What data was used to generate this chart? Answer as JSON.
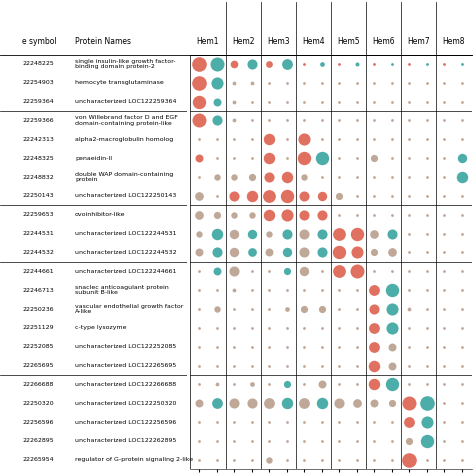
{
  "gene_symbols": [
    "22248225",
    "22254903",
    "22259364",
    "22259366",
    "22242313",
    "22248325",
    "22248832",
    "22250143",
    "22259653",
    "22244531",
    "22244532",
    "22244661",
    "22246713",
    "22250236",
    "22251129",
    "22252085",
    "22265695",
    "22266688",
    "22250320",
    "22256596",
    "22262895",
    "22265954"
  ],
  "protein_names": [
    "single insulin-like growth factor-\nbinding domain protein-2",
    "hemocyte transglutaminase",
    "uncharacterized LOC122259364",
    "von Willebrand factor D and EGF\ndomain-containing protein-like",
    "alpha2-macroglobulin homolog",
    "penaeidin-II",
    "double WAP domain-containing\nprotein",
    "uncharacterized LOC122250143",
    "ovoinhibitor-like",
    "uncharacterized LOC122244531",
    "uncharacterized LOC122244532",
    "uncharacterized LOC122244661",
    "snaclec anticoagulant protein\nsubunit B-like",
    "vascular endothelial growth factor\nA-like",
    "c-type lysozyme",
    "uncharacterized LOC122252085",
    "uncharacterized LOC122265695",
    "uncharacterized LOC122266688",
    "uncharacterized LOC122250320",
    "uncharacterized LOC122256596",
    "uncharacterized LOC122262895",
    "regulator of G-protein signaling 2-like"
  ],
  "hem_groups": [
    "Hem1",
    "Hem2",
    "Hem3",
    "Hem4",
    "Hem5",
    "Hem6",
    "Hem7",
    "Hem8"
  ],
  "color_red": "#E07060",
  "color_teal": "#4DADA8",
  "color_beige": "#C0A898",
  "row_separators_after": [
    3,
    8,
    11,
    17
  ],
  "dot_sizes": [
    [
      0.9,
      0.85,
      0.38,
      0.55,
      0.32,
      0.6,
      0.1,
      0.2,
      0.1,
      0.16,
      0.1,
      0.1,
      0.1,
      0.1,
      0.1,
      0.1
    ],
    [
      0.9,
      0.7,
      0.15,
      0.15,
      0.1,
      0.1,
      0.1,
      0.1,
      0.1,
      0.1,
      0.1,
      0.1,
      0.1,
      0.1,
      0.1,
      0.1
    ],
    [
      0.8,
      0.4,
      0.15,
      0.1,
      0.1,
      0.1,
      0.1,
      0.1,
      0.1,
      0.1,
      0.1,
      0.1,
      0.1,
      0.1,
      0.1,
      0.1
    ],
    [
      0.85,
      0.55,
      0.15,
      0.1,
      0.1,
      0.1,
      0.1,
      0.1,
      0.1,
      0.1,
      0.1,
      0.1,
      0.1,
      0.1,
      0.1,
      0.1
    ],
    [
      0.1,
      0.1,
      0.1,
      0.1,
      0.65,
      0.1,
      0.7,
      0.1,
      0.1,
      0.1,
      0.1,
      0.1,
      0.1,
      0.1,
      0.1,
      0.1
    ],
    [
      0.4,
      0.1,
      0.1,
      0.1,
      0.65,
      0.1,
      0.8,
      0.8,
      0.1,
      0.1,
      0.35,
      0.1,
      0.1,
      0.1,
      0.1,
      0.5
    ],
    [
      0.1,
      0.3,
      0.3,
      0.35,
      0.55,
      0.65,
      0.3,
      0.1,
      0.1,
      0.1,
      0.1,
      0.1,
      0.1,
      0.1,
      0.1,
      0.65
    ],
    [
      0.45,
      0.1,
      0.55,
      0.65,
      0.75,
      0.8,
      0.55,
      0.5,
      0.35,
      0.1,
      0.1,
      0.1,
      0.1,
      0.1,
      0.1,
      0.1
    ],
    [
      0.45,
      0.35,
      0.3,
      0.3,
      0.65,
      0.7,
      0.55,
      0.55,
      0.1,
      0.1,
      0.1,
      0.1,
      0.1,
      0.1,
      0.1,
      0.1
    ],
    [
      0.3,
      0.65,
      0.5,
      0.5,
      0.3,
      0.55,
      0.55,
      0.55,
      0.75,
      0.8,
      0.45,
      0.55,
      0.1,
      0.1,
      0.1,
      0.1
    ],
    [
      0.4,
      0.55,
      0.5,
      0.45,
      0.4,
      0.5,
      0.55,
      0.55,
      0.8,
      0.7,
      0.35,
      0.45,
      0.1,
      0.1,
      0.1,
      0.1
    ],
    [
      0.1,
      0.4,
      0.55,
      0.1,
      0.1,
      0.35,
      0.5,
      0.1,
      0.75,
      0.85,
      0.1,
      0.1,
      0.1,
      0.1,
      0.1,
      0.1
    ],
    [
      0.1,
      0.1,
      0.15,
      0.1,
      0.1,
      0.1,
      0.1,
      0.1,
      0.1,
      0.1,
      0.6,
      0.8,
      0.1,
      0.1,
      0.1,
      0.1
    ],
    [
      0.1,
      0.3,
      0.1,
      0.1,
      0.1,
      0.2,
      0.35,
      0.35,
      0.1,
      0.1,
      0.55,
      0.7,
      0.15,
      0.1,
      0.1,
      0.1
    ],
    [
      0.1,
      0.1,
      0.1,
      0.1,
      0.1,
      0.1,
      0.1,
      0.1,
      0.1,
      0.1,
      0.6,
      0.7,
      0.1,
      0.1,
      0.1,
      0.1
    ],
    [
      0.1,
      0.1,
      0.1,
      0.1,
      0.1,
      0.1,
      0.1,
      0.1,
      0.1,
      0.1,
      0.6,
      0.4,
      0.1,
      0.1,
      0.1,
      0.1
    ],
    [
      0.1,
      0.1,
      0.1,
      0.1,
      0.1,
      0.1,
      0.1,
      0.1,
      0.1,
      0.1,
      0.65,
      0.4,
      0.1,
      0.1,
      0.1,
      0.1
    ],
    [
      0.1,
      0.15,
      0.1,
      0.2,
      0.1,
      0.35,
      0.1,
      0.4,
      0.1,
      0.1,
      0.65,
      0.8,
      0.1,
      0.1,
      0.1,
      0.1
    ],
    [
      0.4,
      0.6,
      0.55,
      0.55,
      0.6,
      0.65,
      0.6,
      0.65,
      0.55,
      0.45,
      0.4,
      0.35,
      0.85,
      0.9,
      0.1,
      0.1
    ],
    [
      0.1,
      0.1,
      0.1,
      0.1,
      0.1,
      0.1,
      0.1,
      0.1,
      0.1,
      0.1,
      0.1,
      0.1,
      0.6,
      0.7,
      0.1,
      0.1
    ],
    [
      0.1,
      0.1,
      0.1,
      0.1,
      0.1,
      0.1,
      0.1,
      0.1,
      0.1,
      0.1,
      0.1,
      0.1,
      0.35,
      0.8,
      0.1,
      0.1
    ],
    [
      0.1,
      0.1,
      0.1,
      0.1,
      0.3,
      0.1,
      0.1,
      0.1,
      0.1,
      0.1,
      0.1,
      0.1,
      0.9,
      0.1,
      0.1,
      0.1
    ]
  ],
  "dot_colors": [
    [
      "R",
      "T",
      "R",
      "T",
      "R",
      "T",
      "R",
      "T",
      "R",
      "T",
      "R",
      "T",
      "R",
      "T",
      "R",
      "T"
    ],
    [
      "R",
      "T",
      "S",
      "S",
      "S",
      "S",
      "S",
      "S",
      "S",
      "S",
      "S",
      "S",
      "S",
      "S",
      "S",
      "S"
    ],
    [
      "R",
      "T",
      "S",
      "S",
      "S",
      "S",
      "S",
      "S",
      "S",
      "S",
      "S",
      "S",
      "S",
      "S",
      "S",
      "S"
    ],
    [
      "R",
      "T",
      "S",
      "S",
      "S",
      "S",
      "S",
      "S",
      "S",
      "S",
      "S",
      "S",
      "S",
      "S",
      "S",
      "S"
    ],
    [
      "S",
      "S",
      "S",
      "S",
      "R",
      "S",
      "R",
      "S",
      "S",
      "S",
      "S",
      "S",
      "S",
      "S",
      "S",
      "S"
    ],
    [
      "R",
      "S",
      "S",
      "S",
      "R",
      "S",
      "R",
      "T",
      "S",
      "S",
      "S",
      "S",
      "S",
      "S",
      "S",
      "T"
    ],
    [
      "S",
      "S",
      "S",
      "S",
      "R",
      "R",
      "S",
      "S",
      "S",
      "S",
      "S",
      "S",
      "S",
      "S",
      "S",
      "T"
    ],
    [
      "S",
      "S",
      "R",
      "R",
      "R",
      "R",
      "R",
      "R",
      "S",
      "S",
      "S",
      "S",
      "S",
      "S",
      "S",
      "S"
    ],
    [
      "S",
      "S",
      "S",
      "S",
      "R",
      "R",
      "R",
      "R",
      "S",
      "S",
      "S",
      "S",
      "S",
      "S",
      "S",
      "S"
    ],
    [
      "S",
      "T",
      "S",
      "T",
      "S",
      "T",
      "S",
      "T",
      "R",
      "R",
      "S",
      "T",
      "S",
      "S",
      "S",
      "S"
    ],
    [
      "S",
      "T",
      "S",
      "T",
      "S",
      "T",
      "S",
      "T",
      "R",
      "R",
      "S",
      "S",
      "S",
      "S",
      "S",
      "S"
    ],
    [
      "S",
      "T",
      "S",
      "S",
      "S",
      "T",
      "S",
      "S",
      "R",
      "R",
      "S",
      "S",
      "S",
      "S",
      "S",
      "S"
    ],
    [
      "S",
      "S",
      "S",
      "S",
      "S",
      "S",
      "S",
      "S",
      "S",
      "S",
      "R",
      "T",
      "S",
      "S",
      "S",
      "S"
    ],
    [
      "S",
      "S",
      "S",
      "S",
      "S",
      "S",
      "S",
      "S",
      "S",
      "S",
      "R",
      "T",
      "S",
      "S",
      "S",
      "S"
    ],
    [
      "S",
      "S",
      "S",
      "S",
      "S",
      "S",
      "S",
      "S",
      "S",
      "S",
      "R",
      "T",
      "S",
      "S",
      "S",
      "S"
    ],
    [
      "S",
      "S",
      "S",
      "S",
      "S",
      "S",
      "S",
      "S",
      "S",
      "S",
      "R",
      "S",
      "S",
      "S",
      "S",
      "S"
    ],
    [
      "S",
      "S",
      "S",
      "S",
      "S",
      "S",
      "S",
      "S",
      "S",
      "S",
      "R",
      "S",
      "S",
      "S",
      "S",
      "S"
    ],
    [
      "S",
      "S",
      "S",
      "S",
      "S",
      "T",
      "S",
      "S",
      "S",
      "S",
      "R",
      "T",
      "S",
      "S",
      "S",
      "S"
    ],
    [
      "S",
      "T",
      "S",
      "S",
      "S",
      "T",
      "S",
      "T",
      "S",
      "S",
      "S",
      "S",
      "R",
      "T",
      "S",
      "S"
    ],
    [
      "S",
      "S",
      "S",
      "S",
      "S",
      "S",
      "S",
      "S",
      "S",
      "S",
      "S",
      "S",
      "R",
      "T",
      "S",
      "S"
    ],
    [
      "S",
      "S",
      "S",
      "S",
      "S",
      "S",
      "S",
      "S",
      "S",
      "S",
      "S",
      "S",
      "S",
      "T",
      "S",
      "S"
    ],
    [
      "S",
      "S",
      "S",
      "S",
      "S",
      "S",
      "S",
      "S",
      "S",
      "S",
      "S",
      "S",
      "R",
      "S",
      "S",
      "S"
    ]
  ]
}
